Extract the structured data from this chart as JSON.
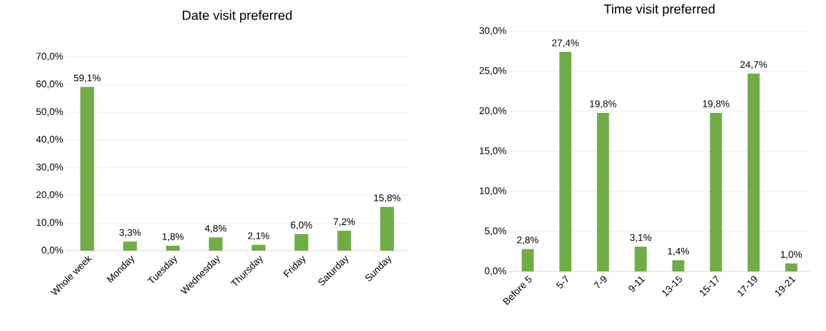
{
  "chart_data": [
    {
      "type": "bar",
      "title": "Date visit preferred",
      "categories": [
        "Whole week",
        "Monday",
        "Tuesday",
        "Wednesday",
        "Thursday",
        "Friday",
        "Saturday",
        "Sunday"
      ],
      "values": [
        59.1,
        3.3,
        1.8,
        4.8,
        2.1,
        6.0,
        7.2,
        15.8
      ],
      "value_labels": [
        "59,1%",
        "3,3%",
        "1,8%",
        "4,8%",
        "2,1%",
        "6,0%",
        "7,2%",
        "15,8%"
      ],
      "color": "#70ad47",
      "ylim": [
        0,
        70
      ],
      "yticks": [
        {
          "value": 0,
          "label": "0,0%"
        },
        {
          "value": 10,
          "label": "10,0%"
        },
        {
          "value": 20,
          "label": "20,0%"
        },
        {
          "value": 30,
          "label": "30,0%"
        },
        {
          "value": 40,
          "label": "40,0%"
        },
        {
          "value": 50,
          "label": "50,0%"
        },
        {
          "value": 60,
          "label": "60,0%"
        },
        {
          "value": 70,
          "label": "70,0%"
        }
      ],
      "grid": "y"
    },
    {
      "type": "bar",
      "title": "Time visit preferred",
      "categories": [
        "Before 5",
        "5-7",
        "7-9",
        "9-11",
        "13-15",
        "15-17",
        "17-19",
        "19-21"
      ],
      "values": [
        2.8,
        27.4,
        19.8,
        3.1,
        1.4,
        19.8,
        24.7,
        1.0
      ],
      "value_labels": [
        "2,8%",
        "27,4%",
        "19,8%",
        "3,1%",
        "1,4%",
        "19,8%",
        "24,7%",
        "1,0%"
      ],
      "color": "#70ad47",
      "ylim": [
        0,
        30
      ],
      "yticks": [
        {
          "value": 0,
          "label": "0,0%"
        },
        {
          "value": 5,
          "label": "5,0%"
        },
        {
          "value": 10,
          "label": "10,0%"
        },
        {
          "value": 15,
          "label": "15,0%"
        },
        {
          "value": 20,
          "label": "20,0%"
        },
        {
          "value": 25,
          "label": "25,0%"
        },
        {
          "value": 30,
          "label": "30,0%"
        }
      ],
      "grid": "y"
    }
  ]
}
